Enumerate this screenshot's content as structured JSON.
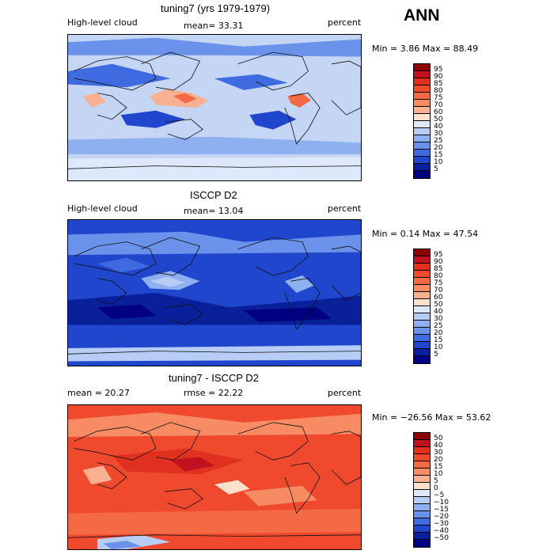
{
  "season": "ANN",
  "panels": [
    {
      "title": "tuning7 (yrs 1979-1979)",
      "left_label": "High-level cloud",
      "mean_text": "mean=  33.31",
      "units": "percent",
      "minmax": "Min =   3.86 Max =  88.49",
      "ticks": [
        "95",
        "90",
        "85",
        "80",
        "75",
        "70",
        "60",
        "50",
        "40",
        "30",
        "25",
        "20",
        "15",
        "10",
        "5"
      ],
      "colors": [
        "#8b0000",
        "#c1121f",
        "#e03020",
        "#f04a2e",
        "#f46a44",
        "#f78c64",
        "#f9b191",
        "#fde1cd",
        "#dde8fa",
        "#b8cdf5",
        "#8fb0f0",
        "#6a92ea",
        "#3f6be0",
        "#1f46cc",
        "#0a1f9a",
        "#000080"
      ],
      "bg": "#c5d6f5",
      "blobs": [
        {
          "c": "#f9b191",
          "pts": [
            [
              0.28,
              0.42
            ],
            [
              0.34,
              0.37
            ],
            [
              0.42,
              0.4
            ],
            [
              0.48,
              0.45
            ],
            [
              0.44,
              0.5
            ],
            [
              0.36,
              0.49
            ],
            [
              0.3,
              0.48
            ]
          ]
        },
        {
          "c": "#f46a44",
          "pts": [
            [
              0.36,
              0.42
            ],
            [
              0.4,
              0.4
            ],
            [
              0.44,
              0.44
            ],
            [
              0.4,
              0.47
            ]
          ]
        },
        {
          "c": "#f46a44",
          "pts": [
            [
              0.75,
              0.42
            ],
            [
              0.8,
              0.4
            ],
            [
              0.83,
              0.45
            ],
            [
              0.79,
              0.5
            ],
            [
              0.76,
              0.47
            ]
          ]
        },
        {
          "c": "#f9b191",
          "pts": [
            [
              0.05,
              0.42
            ],
            [
              0.1,
              0.4
            ],
            [
              0.13,
              0.46
            ],
            [
              0.08,
              0.5
            ]
          ]
        },
        {
          "c": "#1f46cc",
          "pts": [
            [
              0.18,
              0.55
            ],
            [
              0.3,
              0.52
            ],
            [
              0.4,
              0.58
            ],
            [
              0.3,
              0.64
            ],
            [
              0.2,
              0.62
            ]
          ]
        },
        {
          "c": "#1f46cc",
          "pts": [
            [
              0.62,
              0.55
            ],
            [
              0.72,
              0.52
            ],
            [
              0.78,
              0.58
            ],
            [
              0.7,
              0.65
            ],
            [
              0.64,
              0.62
            ]
          ]
        },
        {
          "c": "#3f6be0",
          "pts": [
            [
              0.0,
              0.25
            ],
            [
              0.15,
              0.2
            ],
            [
              0.35,
              0.3
            ],
            [
              0.2,
              0.36
            ],
            [
              0.0,
              0.34
            ]
          ]
        },
        {
          "c": "#3f6be0",
          "pts": [
            [
              0.5,
              0.3
            ],
            [
              0.65,
              0.27
            ],
            [
              0.75,
              0.33
            ],
            [
              0.6,
              0.38
            ]
          ]
        },
        {
          "c": "#6a92ea",
          "pts": [
            [
              0.0,
              0.05
            ],
            [
              0.3,
              0.02
            ],
            [
              0.6,
              0.08
            ],
            [
              1.0,
              0.03
            ],
            [
              1.0,
              0.15
            ],
            [
              0.5,
              0.14
            ],
            [
              0.0,
              0.14
            ]
          ]
        },
        {
          "c": "#dde8fa",
          "pts": [
            [
              0.0,
              0.85
            ],
            [
              1.0,
              0.84
            ],
            [
              1.0,
              1.0
            ],
            [
              0.0,
              1.0
            ]
          ]
        },
        {
          "c": "#8fb0f0",
          "pts": [
            [
              0.0,
              0.72
            ],
            [
              0.5,
              0.7
            ],
            [
              1.0,
              0.74
            ],
            [
              1.0,
              0.82
            ],
            [
              0.0,
              0.82
            ]
          ]
        }
      ]
    },
    {
      "title": "ISCCP D2",
      "left_label": "High-level cloud",
      "mean_text": "mean=  13.04",
      "units": "percent",
      "minmax": "Min =   0.14 Max =  47.54",
      "ticks": [
        "95",
        "90",
        "85",
        "80",
        "75",
        "70",
        "60",
        "50",
        "40",
        "30",
        "25",
        "20",
        "15",
        "10",
        "5"
      ],
      "colors": [
        "#8b0000",
        "#c1121f",
        "#e03020",
        "#f04a2e",
        "#f46a44",
        "#f78c64",
        "#f9b191",
        "#fde1cd",
        "#dde8fa",
        "#b8cdf5",
        "#8fb0f0",
        "#6a92ea",
        "#3f6be0",
        "#1f46cc",
        "#0a1f9a",
        "#000080"
      ],
      "bg": "#1f46cc",
      "blobs": [
        {
          "c": "#0a1f9a",
          "pts": [
            [
              0.0,
              0.55
            ],
            [
              0.3,
              0.5
            ],
            [
              0.55,
              0.6
            ],
            [
              1.0,
              0.52
            ],
            [
              1.0,
              0.72
            ],
            [
              0.0,
              0.72
            ]
          ]
        },
        {
          "c": "#000080",
          "pts": [
            [
              0.1,
              0.6
            ],
            [
              0.25,
              0.58
            ],
            [
              0.3,
              0.66
            ],
            [
              0.15,
              0.68
            ]
          ]
        },
        {
          "c": "#000080",
          "pts": [
            [
              0.6,
              0.62
            ],
            [
              0.85,
              0.6
            ],
            [
              0.9,
              0.68
            ],
            [
              0.65,
              0.7
            ]
          ]
        },
        {
          "c": "#8fb0f0",
          "pts": [
            [
              0.25,
              0.4
            ],
            [
              0.35,
              0.35
            ],
            [
              0.45,
              0.42
            ],
            [
              0.38,
              0.48
            ],
            [
              0.28,
              0.47
            ]
          ]
        },
        {
          "c": "#b8cdf5",
          "pts": [
            [
              0.28,
              0.42
            ],
            [
              0.34,
              0.39
            ],
            [
              0.4,
              0.43
            ],
            [
              0.35,
              0.46
            ]
          ]
        },
        {
          "c": "#8fb0f0",
          "pts": [
            [
              0.74,
              0.42
            ],
            [
              0.8,
              0.38
            ],
            [
              0.84,
              0.45
            ],
            [
              0.78,
              0.5
            ]
          ]
        },
        {
          "c": "#6a92ea",
          "pts": [
            [
              0.0,
              0.1
            ],
            [
              0.4,
              0.08
            ],
            [
              0.6,
              0.15
            ],
            [
              1.0,
              0.1
            ],
            [
              1.0,
              0.22
            ],
            [
              0.0,
              0.24
            ]
          ]
        },
        {
          "c": "#b8cdf5",
          "pts": [
            [
              0.0,
              0.88
            ],
            [
              1.0,
              0.86
            ],
            [
              1.0,
              0.96
            ],
            [
              0.0,
              0.97
            ]
          ]
        },
        {
          "c": "#3f6be0",
          "pts": [
            [
              0.1,
              0.3
            ],
            [
              0.2,
              0.26
            ],
            [
              0.28,
              0.32
            ],
            [
              0.18,
              0.36
            ]
          ]
        }
      ]
    },
    {
      "title": "tuning7 - ISCCP D2",
      "left_label": "mean =  20.27",
      "mean_text": "rmse =  22.22",
      "units": "percent",
      "minmax": "Min = −26.56 Max =  53.62",
      "ticks": [
        "50",
        "40",
        "30",
        "20",
        "15",
        "10",
        "5",
        "0",
        "−5",
        "−10",
        "−15",
        "−20",
        "−30",
        "−40",
        "−50"
      ],
      "colors": [
        "#8b0000",
        "#c1121f",
        "#e03020",
        "#f04a2e",
        "#f46a44",
        "#f78c64",
        "#f9b191",
        "#fde1cd",
        "#dde8fa",
        "#b8cdf5",
        "#8fb0f0",
        "#6a92ea",
        "#3f6be0",
        "#1f46cc",
        "#0a1f9a",
        "#000080"
      ],
      "bg": "#f04a2e",
      "blobs": [
        {
          "c": "#e03020",
          "pts": [
            [
              0.15,
              0.35
            ],
            [
              0.4,
              0.3
            ],
            [
              0.6,
              0.38
            ],
            [
              0.45,
              0.48
            ],
            [
              0.2,
              0.46
            ]
          ]
        },
        {
          "c": "#c1121f",
          "pts": [
            [
              0.35,
              0.38
            ],
            [
              0.45,
              0.36
            ],
            [
              0.5,
              0.42
            ],
            [
              0.4,
              0.46
            ]
          ]
        },
        {
          "c": "#f78c64",
          "pts": [
            [
              0.0,
              0.1
            ],
            [
              0.3,
              0.05
            ],
            [
              0.6,
              0.12
            ],
            [
              1.0,
              0.06
            ],
            [
              1.0,
              0.2
            ],
            [
              0.0,
              0.22
            ]
          ]
        },
        {
          "c": "#f9b191",
          "pts": [
            [
              0.05,
              0.45
            ],
            [
              0.12,
              0.42
            ],
            [
              0.15,
              0.52
            ],
            [
              0.08,
              0.55
            ]
          ]
        },
        {
          "c": "#fde1cd",
          "pts": [
            [
              0.5,
              0.55
            ],
            [
              0.58,
              0.52
            ],
            [
              0.62,
              0.58
            ],
            [
              0.55,
              0.62
            ]
          ]
        },
        {
          "c": "#f78c64",
          "pts": [
            [
              0.6,
              0.6
            ],
            [
              0.8,
              0.56
            ],
            [
              0.85,
              0.66
            ],
            [
              0.65,
              0.7
            ]
          ]
        },
        {
          "c": "#b8cdf5",
          "pts": [
            [
              0.1,
              0.93
            ],
            [
              0.25,
              0.9
            ],
            [
              0.35,
              0.95
            ],
            [
              0.2,
              1.0
            ],
            [
              0.1,
              1.0
            ]
          ]
        },
        {
          "c": "#6a92ea",
          "pts": [
            [
              0.12,
              0.96
            ],
            [
              0.2,
              0.94
            ],
            [
              0.25,
              0.98
            ],
            [
              0.15,
              1.0
            ]
          ]
        },
        {
          "c": "#f46a44",
          "pts": [
            [
              0.0,
              0.75
            ],
            [
              1.0,
              0.72
            ],
            [
              1.0,
              0.88
            ],
            [
              0.0,
              0.9
            ]
          ]
        }
      ]
    }
  ]
}
